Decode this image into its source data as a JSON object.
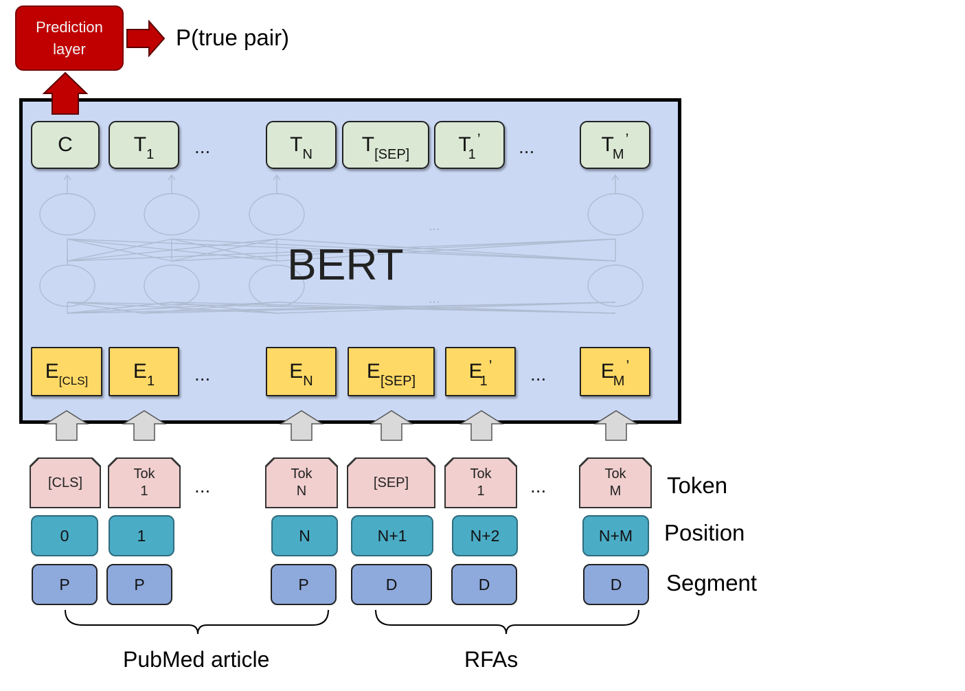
{
  "prediction": {
    "line1": "Prediction",
    "line2": "layer",
    "output": "P(true pair)"
  },
  "bert": {
    "label": "BERT",
    "dots_mid1": "...",
    "dots_mid2": "..."
  },
  "outputs": [
    {
      "main": "C",
      "sub": "",
      "sup": ""
    },
    {
      "main": "T",
      "sub": "1",
      "sup": ""
    },
    {
      "main": "T",
      "sub": "N",
      "sup": ""
    },
    {
      "main": "T",
      "sub": "[SEP]",
      "sup": ""
    },
    {
      "main": "T",
      "sub": "1",
      "sup": "’"
    },
    {
      "main": "T",
      "sub": "M",
      "sup": "’"
    }
  ],
  "embeddings": [
    {
      "main": "E",
      "sub": "[CLS]",
      "sup": ""
    },
    {
      "main": "E",
      "sub": "1",
      "sup": ""
    },
    {
      "main": "E",
      "sub": "N",
      "sup": ""
    },
    {
      "main": "E",
      "sub": "[SEP]",
      "sup": ""
    },
    {
      "main": "E",
      "sub": "1",
      "sup": "’"
    },
    {
      "main": "E",
      "sub": "M",
      "sup": "’"
    }
  ],
  "tokens": [
    {
      "line1": "[CLS]",
      "line2": ""
    },
    {
      "line1": "Tok",
      "line2": "1"
    },
    {
      "line1": "Tok",
      "line2": "N"
    },
    {
      "line1": "[SEP]",
      "line2": ""
    },
    {
      "line1": "Tok",
      "line2": "1"
    },
    {
      "line1": "Tok",
      "line2": "M"
    }
  ],
  "positions": [
    "0",
    "1",
    "N",
    "N+1",
    "N+2",
    "N+M"
  ],
  "segments": [
    "P",
    "P",
    "P",
    "D",
    "D",
    "D"
  ],
  "ellipsis": "...",
  "row_labels": {
    "token": "Token",
    "position": "Position",
    "segment": "Segment"
  },
  "groups": {
    "left": "PubMed article",
    "right": "RFAs"
  },
  "colors": {
    "prediction": "#c00000",
    "bert_bg": "#cad8f4",
    "output_box": "#dae8d4",
    "embedding_box": "#ffd966",
    "token_box": "#f0cfce",
    "position_box": "#4bacc6",
    "segment_box": "#8ea9db"
  }
}
